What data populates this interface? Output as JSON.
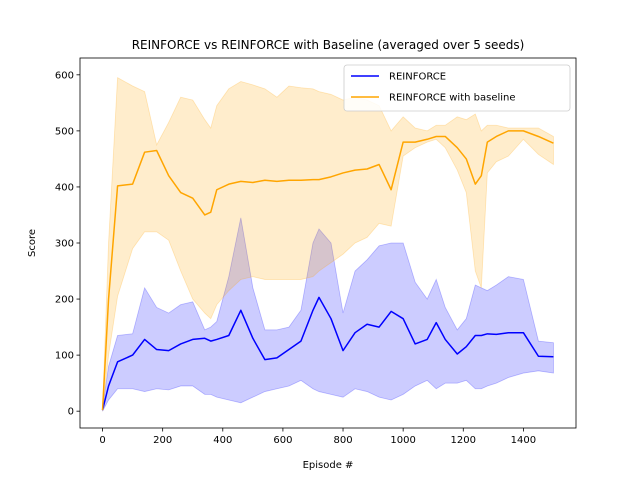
{
  "chart_data": {
    "type": "line",
    "title": "REINFORCE vs REINFORCE with Baseline (averaged over 5 seeds)",
    "xlabel": "Episode #",
    "ylabel": "Score",
    "xlim": [
      -75,
      1575
    ],
    "ylim": [
      -30,
      630
    ],
    "x_ticks": [
      0,
      200,
      400,
      600,
      800,
      1000,
      1200,
      1400
    ],
    "y_ticks": [
      0,
      100,
      200,
      300,
      400,
      500,
      600
    ],
    "grid": false,
    "legend_position": "top-right",
    "x": [
      0,
      20,
      50,
      100,
      140,
      180,
      220,
      260,
      300,
      340,
      360,
      380,
      420,
      460,
      500,
      540,
      580,
      620,
      660,
      700,
      720,
      760,
      800,
      840,
      880,
      920,
      960,
      1000,
      1040,
      1080,
      1110,
      1140,
      1180,
      1210,
      1240,
      1260,
      1280,
      1310,
      1350,
      1400,
      1450,
      1500
    ],
    "series": [
      {
        "name": "REINFORCE",
        "color": "#0000ff",
        "fill": "#0000ff",
        "values": [
          2,
          45,
          88,
          100,
          128,
          110,
          108,
          120,
          128,
          130,
          125,
          128,
          135,
          180,
          130,
          92,
          95,
          110,
          125,
          180,
          203,
          165,
          108,
          140,
          155,
          150,
          178,
          165,
          120,
          128,
          158,
          128,
          102,
          115,
          135,
          135,
          138,
          137,
          140,
          140,
          98,
          97
        ],
        "lower": [
          0,
          20,
          40,
          40,
          35,
          40,
          38,
          45,
          45,
          30,
          30,
          25,
          20,
          15,
          25,
          35,
          40,
          45,
          55,
          40,
          35,
          30,
          25,
          40,
          35,
          25,
          20,
          30,
          45,
          55,
          40,
          50,
          50,
          55,
          40,
          40,
          45,
          50,
          60,
          68,
          72,
          68
        ],
        "upper": [
          5,
          80,
          135,
          138,
          220,
          185,
          175,
          190,
          195,
          145,
          150,
          160,
          240,
          345,
          220,
          145,
          145,
          150,
          180,
          300,
          325,
          300,
          175,
          250,
          270,
          295,
          300,
          300,
          230,
          200,
          235,
          185,
          145,
          165,
          225,
          220,
          215,
          225,
          240,
          235,
          125,
          122
        ]
      },
      {
        "name": "REINFORCE with baseline",
        "color": "#ffa500",
        "fill": "#ffa500",
        "values": [
          2,
          200,
          402,
          405,
          462,
          465,
          420,
          390,
          380,
          350,
          355,
          395,
          405,
          410,
          408,
          412,
          410,
          412,
          412,
          413,
          413,
          418,
          425,
          430,
          432,
          440,
          395,
          480,
          480,
          485,
          490,
          490,
          470,
          450,
          405,
          420,
          480,
          490,
          500,
          500,
          490,
          478
        ],
        "lower": [
          0,
          100,
          205,
          290,
          320,
          320,
          305,
          250,
          200,
          175,
          165,
          190,
          215,
          235,
          240,
          235,
          235,
          235,
          235,
          240,
          250,
          265,
          280,
          300,
          310,
          335,
          330,
          455,
          470,
          480,
          485,
          470,
          430,
          390,
          250,
          220,
          425,
          445,
          455,
          485,
          458,
          440
        ],
        "upper": [
          5,
          300,
          595,
          580,
          570,
          475,
          515,
          560,
          555,
          520,
          505,
          545,
          575,
          588,
          582,
          575,
          560,
          580,
          577,
          575,
          570,
          565,
          555,
          560,
          555,
          545,
          500,
          525,
          505,
          500,
          510,
          510,
          525,
          520,
          530,
          500,
          510,
          510,
          505,
          505,
          505,
          490
        ]
      }
    ]
  }
}
